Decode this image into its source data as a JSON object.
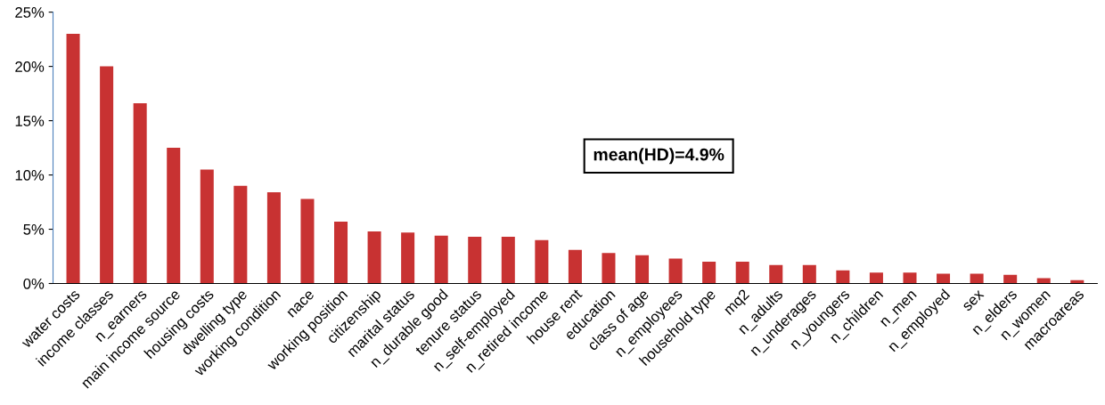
{
  "chart_data": {
    "type": "bar",
    "categories": [
      "water costs",
      "income classes",
      "n_earners",
      "main income source",
      "housing costs",
      "dwelling type",
      "working condition",
      "nace",
      "working position",
      "citizenship",
      "marital status",
      "n_durable good",
      "tenure status",
      "n_self-employed",
      "n_retired income",
      "house rent",
      "education",
      "class of age",
      "n_employees",
      "household type",
      "mq2",
      "n_adults",
      "n_underages",
      "n_youngers",
      "n_children",
      "n_men",
      "n_employed",
      "sex",
      "n_elders",
      "n_women",
      "macroareas"
    ],
    "values": [
      23.0,
      20.0,
      16.6,
      12.5,
      10.5,
      9.0,
      8.4,
      7.8,
      5.7,
      4.8,
      4.7,
      4.4,
      4.3,
      4.3,
      4.0,
      3.1,
      2.8,
      2.6,
      2.3,
      2.0,
      2.0,
      1.7,
      1.7,
      1.2,
      1.0,
      1.0,
      0.9,
      0.9,
      0.8,
      0.5,
      0.3
    ],
    "color": "#c83232",
    "ylim": [
      0,
      25
    ],
    "yticks": [
      {
        "value": 0,
        "label": "0%"
      },
      {
        "value": 5,
        "label": "5%"
      },
      {
        "value": 10,
        "label": "10%"
      },
      {
        "value": 15,
        "label": "15%"
      },
      {
        "value": 20,
        "label": "20%"
      },
      {
        "value": 25,
        "label": "25%"
      }
    ],
    "grid": false,
    "legend": false,
    "annotations": [
      "mean(HD)=4.9%"
    ]
  }
}
